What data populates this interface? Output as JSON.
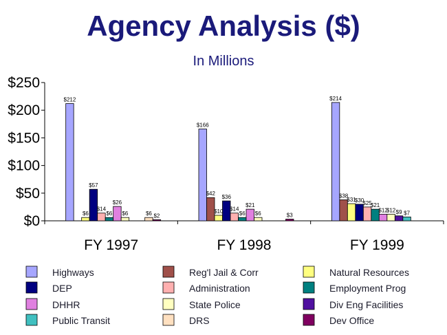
{
  "chart_data": {
    "type": "bar",
    "title": "Agency Analysis ($)",
    "subtitle": "In Millions",
    "categories": [
      "FY 1997",
      "FY 1998",
      "FY 1999"
    ],
    "ylim": [
      0,
      250
    ],
    "yticks": [
      "$0",
      "$50",
      "$100",
      "$150",
      "$200",
      "$250"
    ],
    "legend_position": "bottom",
    "series": [
      {
        "name": "Highways",
        "color": "#a6a6ff",
        "values": [
          212,
          166,
          214
        ],
        "labels": [
          "$212",
          "$166",
          "$214"
        ]
      },
      {
        "name": "Reg'l Jail & Corr",
        "color": "#a0504a",
        "values": [
          null,
          42,
          38
        ],
        "labels": [
          "",
          "$42",
          "$38"
        ]
      },
      {
        "name": "Natural Resources",
        "color": "#ffff80",
        "values": [
          6,
          10,
          31
        ],
        "labels": [
          "$6",
          "$10",
          "$31"
        ]
      },
      {
        "name": "DEP",
        "color": "#000080",
        "values": [
          57,
          36,
          30
        ],
        "labels": [
          "$57",
          "$36",
          "$30"
        ]
      },
      {
        "name": "Administration",
        "color": "#ffb0b0",
        "values": [
          14,
          14,
          25
        ],
        "labels": [
          "$14",
          "$14",
          "$25"
        ]
      },
      {
        "name": "Employment Prog",
        "color": "#008080",
        "values": [
          6,
          6,
          21
        ],
        "labels": [
          "$6",
          "$6",
          "$21"
        ]
      },
      {
        "name": "DHHR",
        "color": "#e080e0",
        "values": [
          26,
          21,
          12
        ],
        "labels": [
          "$26",
          "$21",
          "$12"
        ]
      },
      {
        "name": "State Police",
        "color": "#ffffc0",
        "values": [
          6,
          6,
          12
        ],
        "labels": [
          "$6",
          "$6",
          "$12"
        ]
      },
      {
        "name": "Div Eng Facilities",
        "color": "#5010a0",
        "values": [
          null,
          null,
          9
        ],
        "labels": [
          "",
          "",
          "$9"
        ]
      },
      {
        "name": "Public Transit",
        "color": "#40c0c0",
        "values": [
          null,
          null,
          7
        ],
        "labels": [
          "",
          "",
          "$7"
        ]
      },
      {
        "name": "DRS",
        "color": "#ffe0c0",
        "values": [
          6,
          null,
          null
        ],
        "labels": [
          "$6",
          "",
          ""
        ]
      },
      {
        "name": "Dev Office",
        "color": "#800060",
        "values": [
          2,
          3,
          null
        ],
        "labels": [
          "$2",
          "$3",
          ""
        ]
      }
    ]
  }
}
